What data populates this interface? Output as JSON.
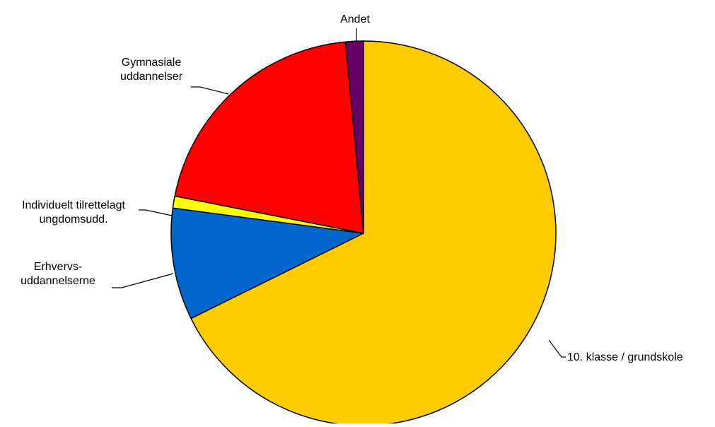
{
  "chart_data": {
    "type": "pie",
    "title": "",
    "start_angle_deg": 0,
    "direction": "clockwise",
    "slices": [
      {
        "label_lines": [
          "10. klasse / grundskole"
        ],
        "value": 67.7,
        "color": "#FFCC00"
      },
      {
        "label_lines": [
          "Erhvervs-",
          "uddannelserne"
        ],
        "value": 9.4,
        "color": "#0066CC"
      },
      {
        "label_lines": [
          "Individuelt tilrettelagt",
          "ungdomsudd."
        ],
        "value": 1.0,
        "color": "#FFFF00"
      },
      {
        "label_lines": [
          "Gymnasiale",
          "uddannelser"
        ],
        "value": 20.4,
        "color": "#FF0000"
      },
      {
        "label_lines": [
          "Andet"
        ],
        "value": 1.5,
        "color": "#660066"
      }
    ]
  }
}
